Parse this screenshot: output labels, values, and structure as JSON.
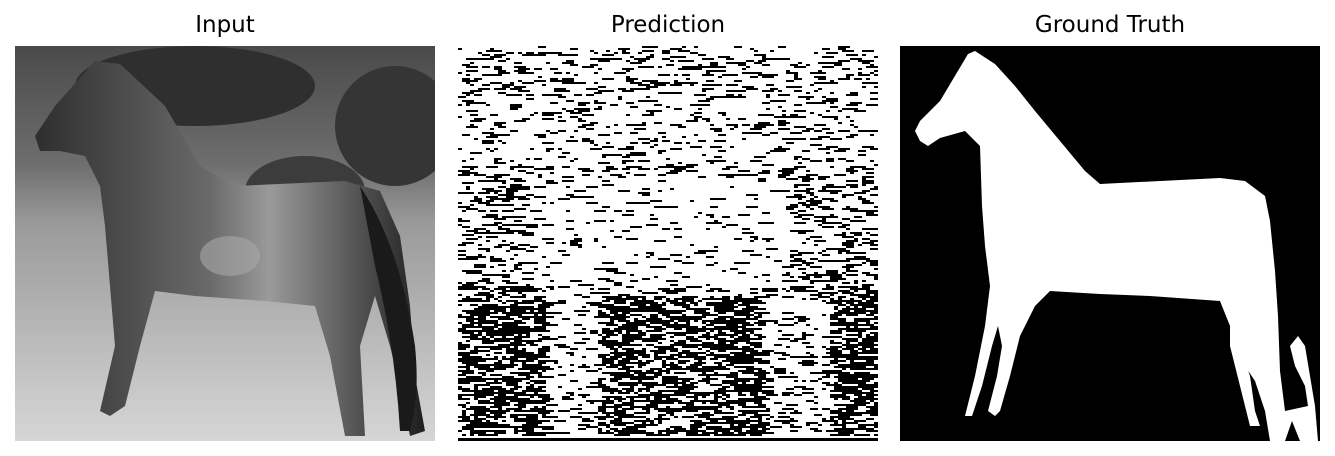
{
  "panels": [
    {
      "id": "input",
      "title": "Input"
    },
    {
      "id": "prediction",
      "title": "Prediction"
    },
    {
      "id": "ground_truth",
      "title": "Ground Truth"
    }
  ],
  "colors": {
    "background": "#ffffff",
    "mask_foreground": "#ffffff",
    "mask_background": "#000000",
    "input_sky": "#5a5a5a",
    "input_grass": "#c8c8c8",
    "horse": "#3a3a3a"
  }
}
